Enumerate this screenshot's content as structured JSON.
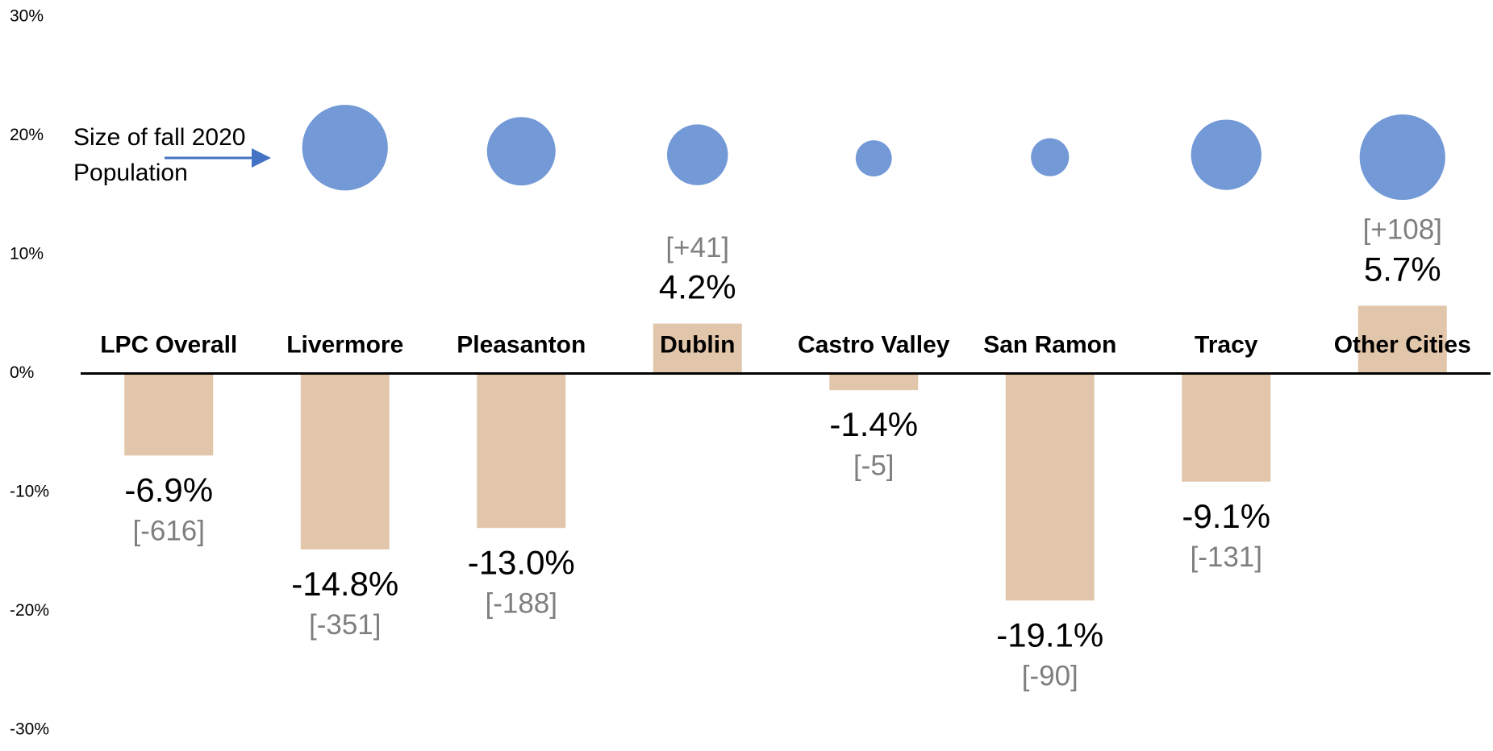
{
  "chart_data": {
    "type": "bar",
    "categories": [
      "LPC Overall",
      "Livermore",
      "Pleasanton",
      "Dublin",
      "Castro Valley",
      "San Ramon",
      "Tracy",
      "Other Cities"
    ],
    "values": [
      -6.9,
      -14.8,
      -13.0,
      4.2,
      -1.4,
      -19.1,
      -9.1,
      5.7
    ],
    "value_labels": [
      "-6.9%",
      "-14.8%",
      "-13.0%",
      "4.2%",
      "-1.4%",
      "-19.1%",
      "-9.1%",
      "5.7%"
    ],
    "count_labels": [
      "[-616]",
      "[-351]",
      "[-188]",
      "[+41]",
      "[-5]",
      "[-90]",
      "[-131]",
      "[+108]"
    ],
    "color": "#e2c6ab",
    "bubble_color": "#7399d6",
    "bubble_y": [
      null,
      19.0,
      18.7,
      18.4,
      18.1,
      18.2,
      18.4,
      18.2
    ],
    "bubble_sizes": [
      null,
      45,
      36,
      32,
      19,
      20,
      37,
      45
    ],
    "annotation": [
      "Size of fall 2020",
      "Population"
    ],
    "ylim": [
      -30,
      30
    ],
    "yticks": [
      {
        "value": 30,
        "label": "30%"
      },
      {
        "value": 20,
        "label": "20%"
      },
      {
        "value": 10,
        "label": "10%"
      },
      {
        "value": 0,
        "label": "0%"
      },
      {
        "value": -10,
        "label": "-10%"
      },
      {
        "value": -20,
        "label": "-20%"
      },
      {
        "value": -30,
        "label": "-30%"
      }
    ]
  }
}
